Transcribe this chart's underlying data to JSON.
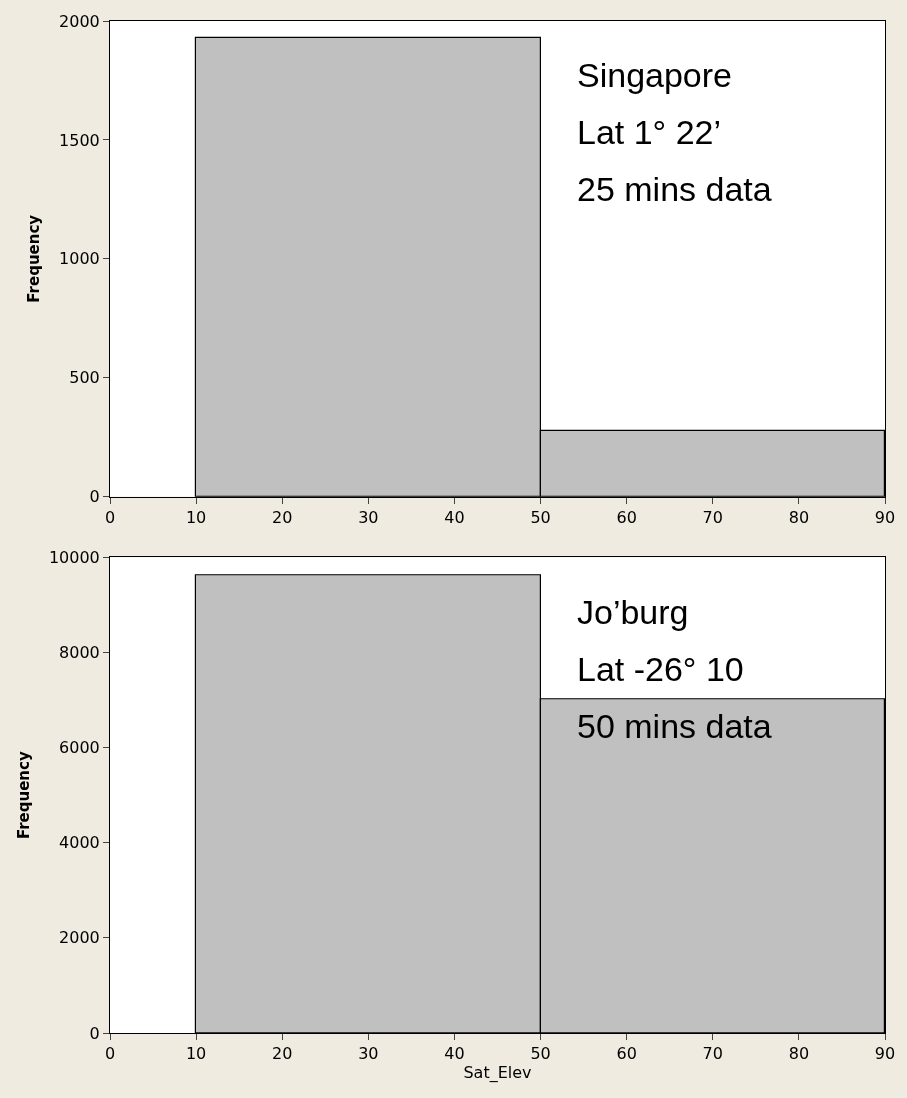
{
  "chart_data": [
    {
      "type": "histogram",
      "ylabel": "Frequency",
      "bins": [
        10,
        50,
        90
      ],
      "values": [
        1930,
        275
      ],
      "color": "#c0c0c0",
      "xlim": [
        0,
        90
      ],
      "xticks": [
        0,
        10,
        20,
        30,
        40,
        50,
        60,
        70,
        80,
        90
      ],
      "ylim": [
        0,
        2000
      ],
      "yticks": [
        0,
        500,
        1000,
        1500,
        2000
      ],
      "grid": false,
      "annotations": [
        "Singapore",
        "Lat 1° 22’",
        "25 mins data"
      ]
    },
    {
      "type": "histogram",
      "xlabel": "Sat_Elev",
      "ylabel": "Frequency",
      "bins": [
        10,
        50,
        90
      ],
      "values": [
        9630,
        7010
      ],
      "color": "#c0c0c0",
      "xlim": [
        0,
        90
      ],
      "xticks": [
        0,
        10,
        20,
        30,
        40,
        50,
        60,
        70,
        80,
        90
      ],
      "ylim": [
        0,
        10000
      ],
      "yticks": [
        0,
        2000,
        4000,
        6000,
        8000,
        10000
      ],
      "grid": false,
      "annotations": [
        "Jo’burg",
        "Lat -26° 10",
        "50 mins data"
      ]
    }
  ]
}
